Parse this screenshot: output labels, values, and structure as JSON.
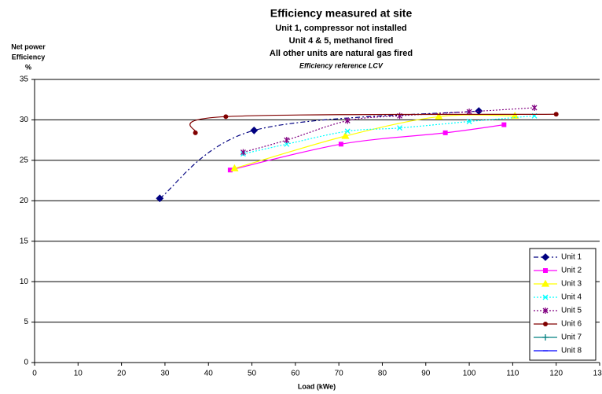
{
  "chart_data": {
    "type": "line",
    "title": "Efficiency measured at site",
    "subtitles": [
      "Unit 1, compressor not installed",
      "Unit 4 & 5, methanol fired",
      "All other units are natural gas fired"
    ],
    "note": "Efficiency reference LCV",
    "y_label": [
      "Net power",
      "Efficiency",
      "%"
    ],
    "x_label": "Load (kWe)",
    "xlim": [
      0,
      130
    ],
    "xticks": [
      0,
      10,
      20,
      30,
      40,
      50,
      60,
      70,
      80,
      90,
      100,
      110,
      120,
      130
    ],
    "ylim": [
      0,
      35
    ],
    "yticks": [
      0,
      5,
      10,
      15,
      20,
      25,
      30,
      35
    ],
    "grid": true,
    "legend": "lower right",
    "series": [
      {
        "name": "Unit 1",
        "color": "#000080",
        "dash": "6,3,2,3",
        "marker": "diamond",
        "x": [
          28.8,
          50.5,
          102.2
        ],
        "values": [
          20.3,
          28.7,
          31.1
        ]
      },
      {
        "name": "Unit 2",
        "color": "#FF00FF",
        "dash": "none",
        "marker": "square",
        "x": [
          45,
          70.5,
          94.5,
          108
        ],
        "values": [
          23.8,
          27.0,
          28.4,
          29.4
        ]
      },
      {
        "name": "Unit 3",
        "color": "#FFFF00",
        "dash": "none",
        "marker": "triangle",
        "x": [
          46,
          71.5,
          93,
          110.5
        ],
        "values": [
          24.0,
          28.0,
          30.4,
          30.5
        ]
      },
      {
        "name": "Unit 4",
        "color": "#00FFFF",
        "dash": "2,2",
        "marker": "x",
        "x": [
          48,
          58,
          72,
          84,
          100,
          115
        ],
        "values": [
          25.8,
          27.0,
          28.6,
          29.0,
          29.8,
          30.5
        ]
      },
      {
        "name": "Unit 5",
        "color": "#800080",
        "dash": "2,2",
        "marker": "asterisk",
        "x": [
          48,
          58,
          72,
          84,
          100,
          115
        ],
        "values": [
          26.0,
          27.5,
          29.9,
          30.5,
          31.0,
          31.5
        ]
      },
      {
        "name": "Unit 6",
        "color": "#800000",
        "dash": "none",
        "marker": "circle",
        "x": [
          37,
          44,
          120
        ],
        "values": [
          28.4,
          30.4,
          30.7
        ]
      },
      {
        "name": "Unit 7",
        "color": "#008080",
        "dash": "none",
        "marker": "plus",
        "x": [],
        "values": []
      },
      {
        "name": "Unit 8",
        "color": "#0000FF",
        "dash": "none",
        "marker": "dash",
        "x": [],
        "values": []
      }
    ]
  }
}
